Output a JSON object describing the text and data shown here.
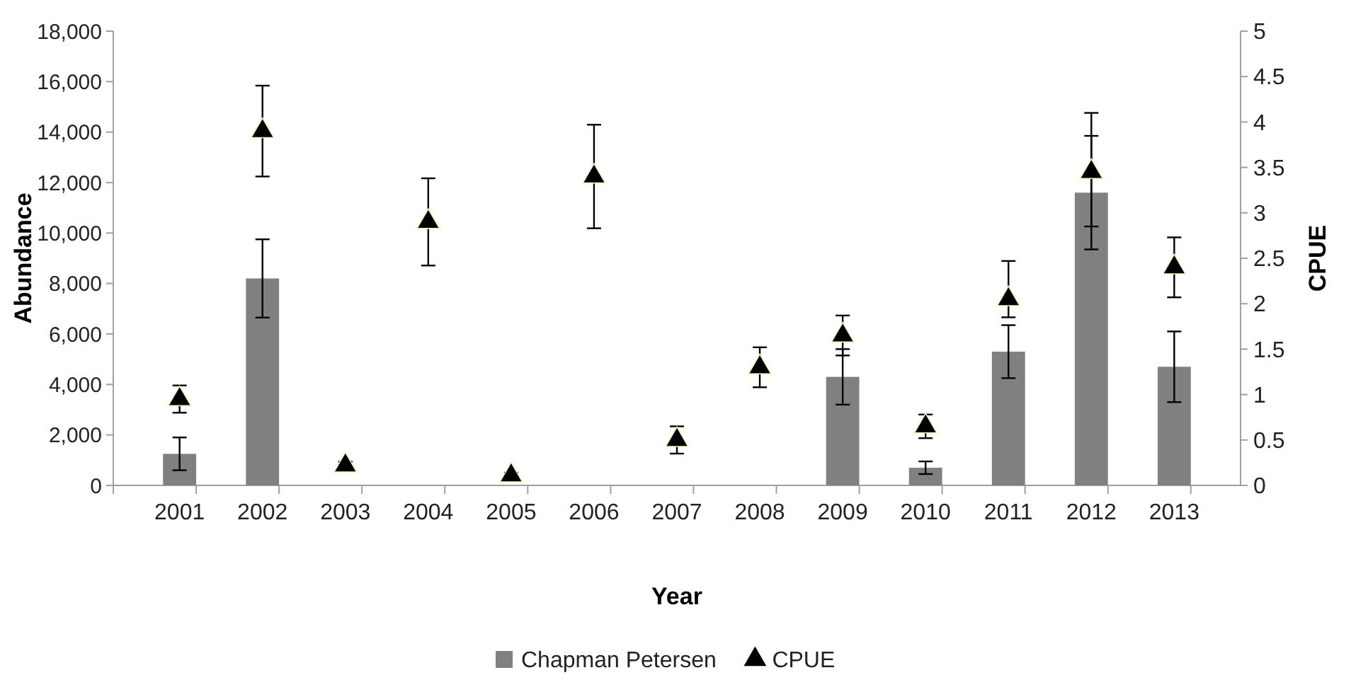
{
  "chart_data": {
    "type": "bar",
    "xlabel": "Year",
    "ylabel": "Abundance",
    "y2label": "CPUE",
    "categories": [
      "2001",
      "2002",
      "2003",
      "2004",
      "2005",
      "2006",
      "2007",
      "2008",
      "2009",
      "2010",
      "2011",
      "2012",
      "2013"
    ],
    "series": [
      {
        "name": "Chapman Petersen",
        "color": "#808080",
        "values": [
          1250,
          8200,
          null,
          null,
          null,
          null,
          null,
          null,
          4300,
          700,
          5300,
          11600,
          4700
        ],
        "errors": [
          650,
          1550,
          null,
          null,
          null,
          null,
          null,
          null,
          1100,
          250,
          1050,
          2250,
          1400
        ]
      },
      {
        "name": "CPUE",
        "type": "scatter",
        "axis": "y2",
        "marker": "triangle",
        "color": "#000000",
        "values": [
          0.95,
          3.9,
          0.22,
          2.9,
          0.11,
          3.4,
          0.5,
          1.3,
          1.65,
          0.65,
          2.05,
          3.45,
          2.4
        ],
        "errors": [
          0.15,
          0.5,
          0.04,
          0.48,
          0.03,
          0.57,
          0.15,
          0.22,
          0.22,
          0.13,
          [
            1.85,
            2.47
          ],
          [
            2.85,
            4.1
          ],
          0.33
        ]
      }
    ],
    "ylim": [
      0,
      18000
    ],
    "yticks": [
      0,
      {
        "value": 2000,
        "label": "2,000"
      },
      {
        "value": 4000,
        "label": "4,000"
      },
      {
        "value": 6000,
        "label": "6,000"
      },
      {
        "value": 8000,
        "label": "8,000"
      },
      {
        "value": 10000,
        "label": "10,000"
      },
      {
        "value": 12000,
        "label": "12,000"
      },
      {
        "value": 14000,
        "label": "14,000"
      },
      {
        "value": 16000,
        "label": "16,000"
      },
      {
        "value": 18000,
        "label": "18,000"
      }
    ],
    "y2lim": [
      0,
      5
    ],
    "y2ticks": [
      0,
      0.5,
      1,
      1.5,
      2,
      2.5,
      3,
      3.5,
      4,
      4.5,
      5
    ],
    "legend": "bottom",
    "grid": false
  }
}
